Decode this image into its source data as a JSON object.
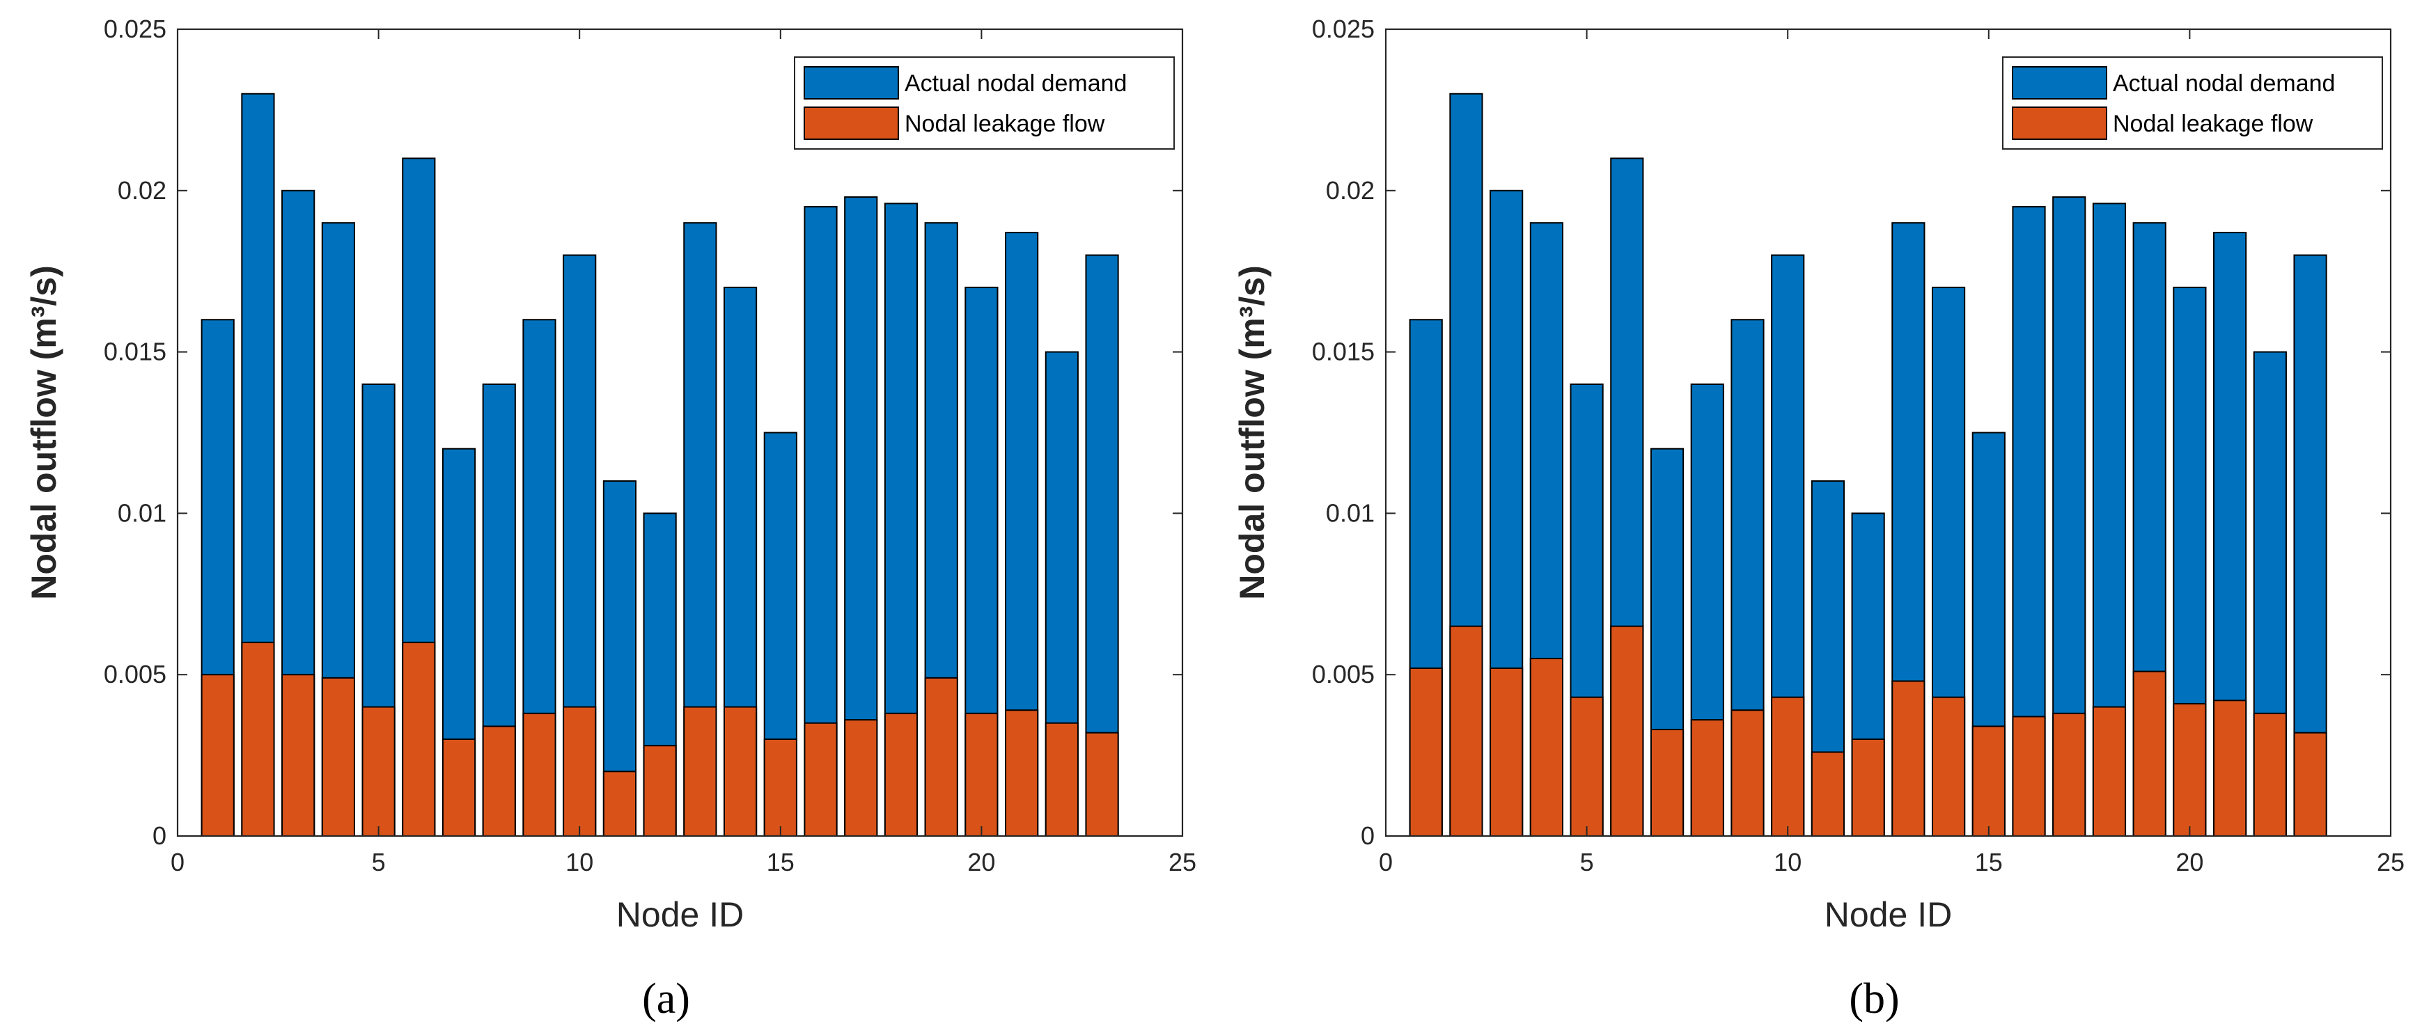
{
  "colors": {
    "demand": "#0072BD",
    "leakage": "#D95319",
    "edge": "#000000",
    "axis": "#262626"
  },
  "chart_data": [
    {
      "type": "bar",
      "panel_label": "(a)",
      "xlabel": "Node ID",
      "ylabel": "Nodal outflow (m³/s)",
      "xlim": [
        0,
        25
      ],
      "ylim": [
        0,
        0.025
      ],
      "xticks": [
        0,
        5,
        10,
        15,
        20,
        25
      ],
      "xtick_labels": [
        "0",
        "5",
        "10",
        "15",
        "20",
        "25"
      ],
      "yticks": [
        0,
        0.005,
        0.01,
        0.015,
        0.02,
        0.025
      ],
      "ytick_labels": [
        "0",
        "0.005",
        "0.01",
        "0.015",
        "0.02",
        "0.025"
      ],
      "legend_position": "top-right",
      "x": [
        1,
        2,
        3,
        4,
        5,
        6,
        7,
        8,
        9,
        10,
        11,
        12,
        13,
        14,
        15,
        16,
        17,
        18,
        19,
        20,
        21,
        22,
        23
      ],
      "series": [
        {
          "name": "Actual nodal demand",
          "color_key": "demand",
          "values": [
            0.016,
            0.023,
            0.02,
            0.019,
            0.014,
            0.021,
            0.012,
            0.014,
            0.016,
            0.018,
            0.011,
            0.01,
            0.019,
            0.017,
            0.0125,
            0.0195,
            0.0198,
            0.0196,
            0.019,
            0.017,
            0.0187,
            0.015,
            0.018
          ]
        },
        {
          "name": "Nodal leakage flow",
          "color_key": "leakage",
          "values": [
            0.005,
            0.006,
            0.005,
            0.0049,
            0.004,
            0.006,
            0.003,
            0.0034,
            0.0038,
            0.004,
            0.002,
            0.0028,
            0.004,
            0.004,
            0.003,
            0.0035,
            0.0036,
            0.0038,
            0.0049,
            0.0038,
            0.0039,
            0.0035,
            0.0032
          ]
        }
      ]
    },
    {
      "type": "bar",
      "panel_label": "(b)",
      "xlabel": "Node ID",
      "ylabel": "Nodal outflow (m³/s)",
      "xlim": [
        0,
        25
      ],
      "ylim": [
        0,
        0.025
      ],
      "xticks": [
        0,
        5,
        10,
        15,
        20,
        25
      ],
      "xtick_labels": [
        "0",
        "5",
        "10",
        "15",
        "20",
        "25"
      ],
      "yticks": [
        0,
        0.005,
        0.01,
        0.015,
        0.02,
        0.025
      ],
      "ytick_labels": [
        "0",
        "0.005",
        "0.01",
        "0.015",
        "0.02",
        "0.025"
      ],
      "legend_position": "top-right",
      "x": [
        1,
        2,
        3,
        4,
        5,
        6,
        7,
        8,
        9,
        10,
        11,
        12,
        13,
        14,
        15,
        16,
        17,
        18,
        19,
        20,
        21,
        22,
        23
      ],
      "series": [
        {
          "name": "Actual nodal demand",
          "color_key": "demand",
          "values": [
            0.016,
            0.023,
            0.02,
            0.019,
            0.014,
            0.021,
            0.012,
            0.014,
            0.016,
            0.018,
            0.011,
            0.01,
            0.019,
            0.017,
            0.0125,
            0.0195,
            0.0198,
            0.0196,
            0.019,
            0.017,
            0.0187,
            0.015,
            0.018
          ]
        },
        {
          "name": "Nodal leakage flow",
          "color_key": "leakage",
          "values": [
            0.0052,
            0.0065,
            0.0052,
            0.0055,
            0.0043,
            0.0065,
            0.0033,
            0.0036,
            0.0039,
            0.0043,
            0.0026,
            0.003,
            0.0048,
            0.0043,
            0.0034,
            0.0037,
            0.0038,
            0.004,
            0.0051,
            0.0041,
            0.0042,
            0.0038,
            0.0032
          ]
        }
      ]
    }
  ]
}
